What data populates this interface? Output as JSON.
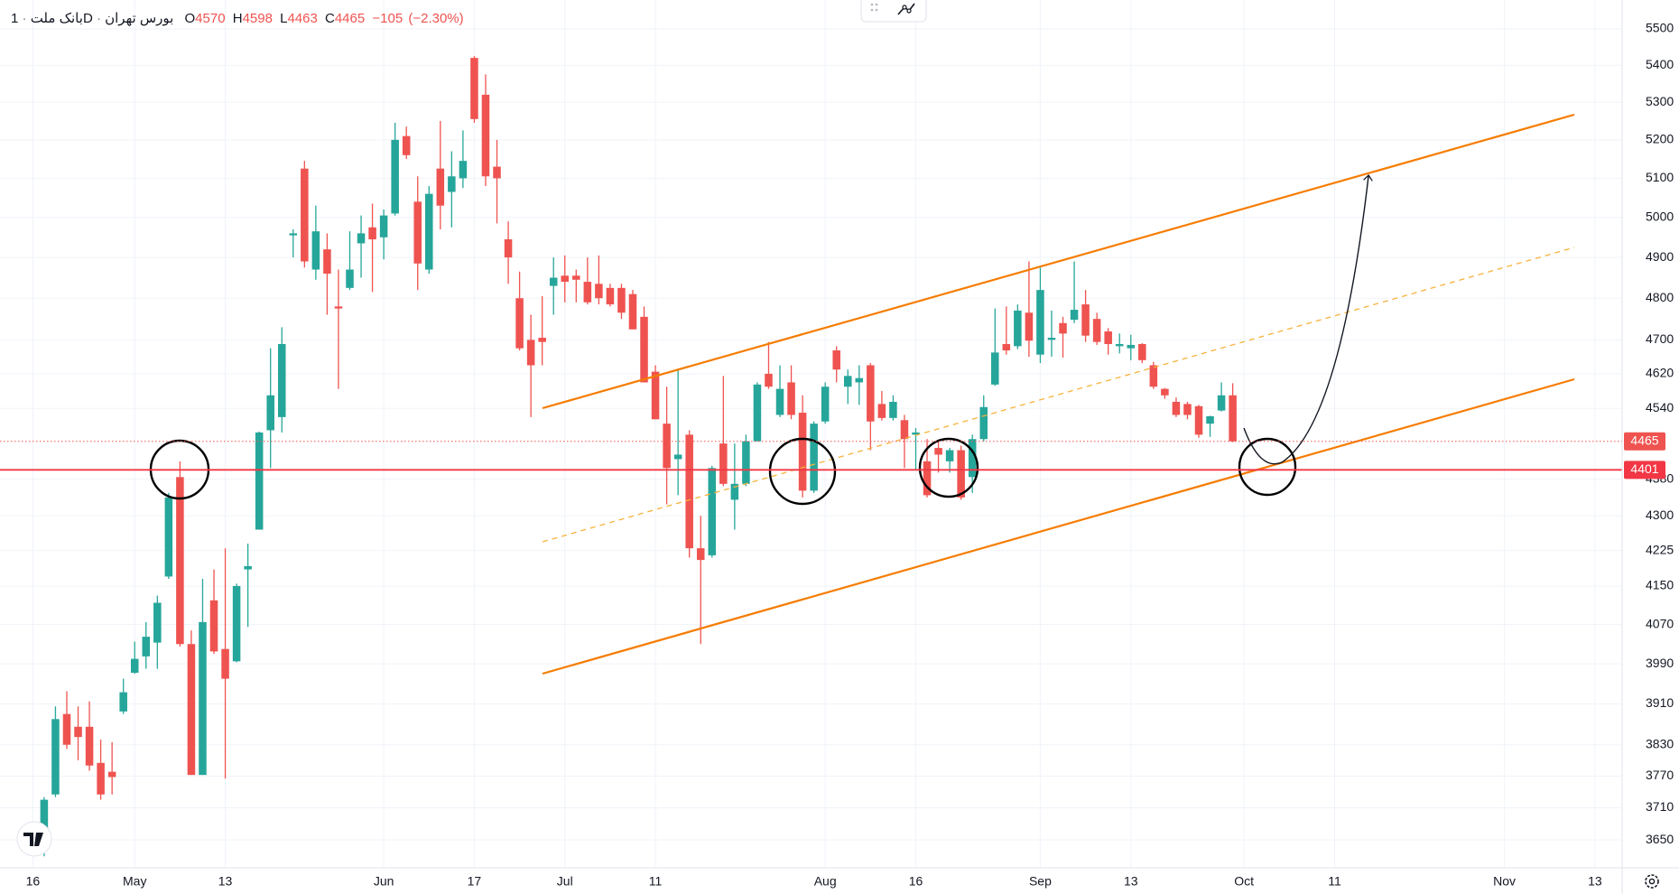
{
  "chart_data": {
    "type": "candlestick",
    "symbol": "بانک ملت",
    "separator": "·",
    "interval": "1D",
    "exchange": "بورس تهران",
    "ohlc_labels": [
      "O",
      "H",
      "L",
      "C"
    ],
    "change": {
      "value": -105,
      "label": "−105"
    },
    "change_pct": {
      "value": -2.3,
      "label": "(−2.30%)"
    },
    "up_color": "#26a69a",
    "down_color": "#ef5350",
    "level_color": "#f23645",
    "log_scale": true,
    "grid": true,
    "open": [
      3640,
      3735,
      3890,
      3865,
      3865,
      3795,
      3778,
      3895,
      3972,
      4005,
      4033,
      4170,
      4385,
      4030,
      3772,
      4120,
      4020,
      3995,
      4185,
      4270,
      4490,
      4520,
      4955,
      5125,
      4870,
      4920,
      4780,
      4825,
      4935,
      4975,
      4950,
      5010,
      5210,
      5040,
      4870,
      5125,
      5065,
      5100,
      5420,
      5320,
      5130,
      4945,
      4800,
      4700,
      4705,
      4830,
      4855,
      4855,
      4840,
      4835,
      4825,
      4825,
      4810,
      4755,
      4625,
      4505,
      4425,
      4480,
      4230,
      4215,
      4460,
      4335,
      4370,
      4465,
      4620,
      4525,
      4600,
      4530,
      4355,
      4510,
      4675,
      4590,
      4600,
      4640,
      4550,
      4518,
      4513,
      4480,
      4420,
      4450,
      4420,
      4445,
      4385,
      4470,
      4595,
      4690,
      4685,
      4765,
      4665,
      4700,
      4740,
      4748,
      4785,
      4750,
      4720,
      4685,
      4680,
      4690,
      4640,
      4585,
      4555,
      4550,
      4545,
      4505,
      4535,
      4570
    ],
    "high": [
      3730,
      3905,
      3935,
      3905,
      3915,
      3840,
      3835,
      3960,
      4035,
      4075,
      4130,
      4350,
      4420,
      4058,
      4165,
      4185,
      4230,
      4155,
      4240,
      4487,
      4680,
      4730,
      4970,
      5145,
      5030,
      4960,
      4870,
      4965,
      5005,
      5035,
      5020,
      5245,
      5235,
      5105,
      5080,
      5250,
      5170,
      5225,
      5425,
      5375,
      5200,
      4990,
      4865,
      4760,
      4805,
      4900,
      4905,
      4870,
      4900,
      4905,
      4835,
      4835,
      4820,
      4780,
      4640,
      4590,
      4630,
      4490,
      4300,
      4410,
      4615,
      4460,
      4480,
      4600,
      4695,
      4640,
      4640,
      4570,
      4510,
      4600,
      4685,
      4630,
      4640,
      4645,
      4580,
      4570,
      4525,
      4495,
      4470,
      4465,
      4450,
      4455,
      4480,
      4570,
      4775,
      4780,
      4785,
      4890,
      4875,
      4770,
      4755,
      4890,
      4820,
      4765,
      4728,
      4715,
      4712,
      4692,
      4648,
      4587,
      4565,
      4555,
      4548,
      4523,
      4600,
      4598
    ],
    "low": [
      3620,
      3730,
      3822,
      3800,
      3780,
      3725,
      3735,
      3890,
      3970,
      3980,
      3980,
      4165,
      4025,
      3772,
      3772,
      4010,
      3765,
      3993,
      4065,
      4270,
      4405,
      4485,
      4900,
      4875,
      4845,
      4760,
      4585,
      4820,
      4850,
      4815,
      4895,
      5005,
      5150,
      4820,
      4860,
      4970,
      4975,
      5075,
      5245,
      5080,
      4985,
      4835,
      4675,
      4520,
      4640,
      4760,
      4790,
      4790,
      4785,
      4785,
      4780,
      4750,
      4725,
      4600,
      4515,
      4325,
      4345,
      4210,
      4030,
      4210,
      4365,
      4270,
      4365,
      4465,
      4585,
      4520,
      4515,
      4340,
      4350,
      4505,
      4600,
      4550,
      4548,
      4445,
      4512,
      4512,
      4405,
      4400,
      4340,
      4395,
      4395,
      4335,
      4350,
      4465,
      4592,
      4665,
      4678,
      4660,
      4645,
      4660,
      4658,
      4740,
      4695,
      4688,
      4665,
      4668,
      4652,
      4645,
      4585,
      4562,
      4520,
      4515,
      4473,
      4475,
      4533,
      4463
    ],
    "close": [
      3725,
      3880,
      3830,
      3845,
      3790,
      3735,
      3768,
      3933,
      4000,
      4045,
      4115,
      4340,
      4030,
      3772,
      4075,
      4015,
      3960,
      4150,
      4192,
      4485,
      4570,
      4690,
      4960,
      4890,
      4965,
      4860,
      4775,
      4870,
      4960,
      4945,
      5005,
      5200,
      5160,
      4885,
      5060,
      5030,
      5105,
      5145,
      5255,
      5105,
      5100,
      4900,
      4680,
      4640,
      4695,
      4850,
      4840,
      4845,
      4790,
      4800,
      4785,
      4765,
      4725,
      4600,
      4515,
      4405,
      4435,
      4230,
      4205,
      4405,
      4370,
      4370,
      4465,
      4595,
      4590,
      4585,
      4525,
      4355,
      4505,
      4590,
      4630,
      4615,
      4610,
      4510,
      4518,
      4555,
      4470,
      4485,
      4345,
      4435,
      4445,
      4340,
      4470,
      4543,
      4670,
      4675,
      4770,
      4698,
      4820,
      4705,
      4715,
      4772,
      4710,
      4695,
      4690,
      4690,
      4688,
      4652,
      4590,
      4570,
      4525,
      4525,
      4480,
      4522,
      4570,
      4465
    ],
    "levels": [
      4401
    ],
    "xlim": [
      -3.9,
      139.4
    ],
    "xticks": [
      {
        "value": -1,
        "label": "16"
      },
      {
        "value": 8,
        "label": "May"
      },
      {
        "value": 16,
        "label": "13"
      },
      {
        "value": 30,
        "label": "Jun"
      },
      {
        "value": 38,
        "label": "17"
      },
      {
        "value": 46,
        "label": "Jul"
      },
      {
        "value": 54,
        "label": "11"
      },
      {
        "value": 69,
        "label": "Aug"
      },
      {
        "value": 77,
        "label": "16"
      },
      {
        "value": 88,
        "label": "Sep"
      },
      {
        "value": 96,
        "label": "13"
      },
      {
        "value": 106,
        "label": "Oct"
      },
      {
        "value": 114,
        "label": "11"
      },
      {
        "value": 129,
        "label": "Nov"
      },
      {
        "value": 137,
        "label": "13"
      }
    ],
    "ylim": [
      3599,
      5581
    ],
    "yticks": [
      5500,
      5400,
      5300,
      5200,
      5100,
      5000,
      4900,
      4800,
      4700,
      4620,
      4540,
      4380,
      4300,
      4225,
      4150,
      4070,
      3990,
      3910,
      3830,
      3770,
      3710,
      3650
    ]
  }
}
